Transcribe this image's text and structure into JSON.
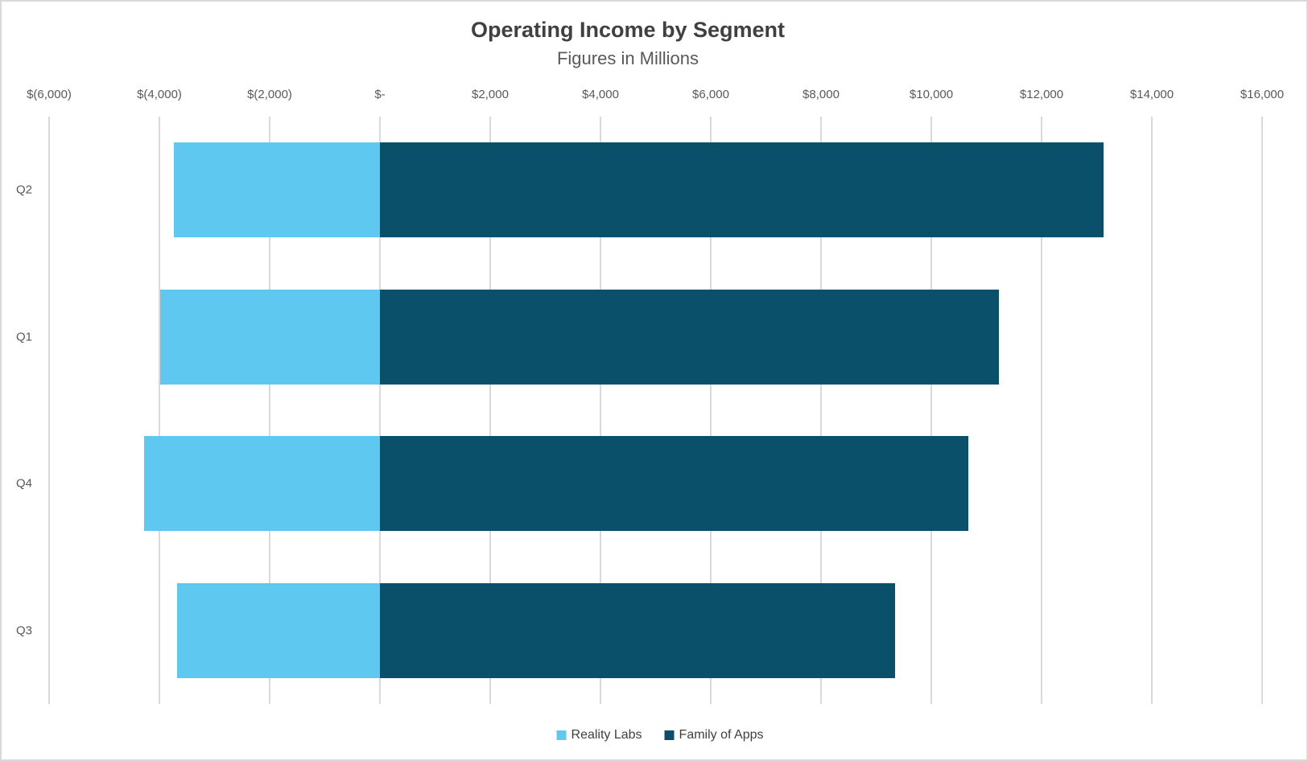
{
  "chart_data": {
    "type": "bar",
    "orientation": "horizontal",
    "title": "Operating Income by Segment",
    "subtitle": "Figures in Millions",
    "categories": [
      "Q2",
      "Q1",
      "Q4",
      "Q3"
    ],
    "series": [
      {
        "name": "Reality Labs",
        "color": "#5EC8F0",
        "values": [
          -3739,
          -3992,
          -4279,
          -3672
        ]
      },
      {
        "name": "Family of Apps",
        "color": "#0A506B",
        "values": [
          13131,
          11219,
          10678,
          9336
        ]
      }
    ],
    "x_axis": {
      "min": -6000,
      "max": 16000,
      "tick_interval": 2000,
      "ticks": [
        {
          "value": -6000,
          "label": "$(6,000)"
        },
        {
          "value": -4000,
          "label": "$(4,000)"
        },
        {
          "value": -2000,
          "label": "$(2,000)"
        },
        {
          "value": 0,
          "label": "$-"
        },
        {
          "value": 2000,
          "label": "$2,000"
        },
        {
          "value": 4000,
          "label": "$4,000"
        },
        {
          "value": 6000,
          "label": "$6,000"
        },
        {
          "value": 8000,
          "label": "$8,000"
        },
        {
          "value": 10000,
          "label": "$10,000"
        },
        {
          "value": 12000,
          "label": "$12,000"
        },
        {
          "value": 14000,
          "label": "$14,000"
        },
        {
          "value": 16000,
          "label": "$16,000"
        }
      ]
    },
    "grid": true,
    "legend_position": "bottom"
  },
  "style": {
    "background": "#FFFFFF",
    "border_color": "#D9D9D9",
    "grid_color": "#D9D9D9",
    "title_color": "#404040",
    "subtitle_color": "#595959",
    "axis_label_color": "#595959",
    "legend_text_color": "#404040"
  }
}
